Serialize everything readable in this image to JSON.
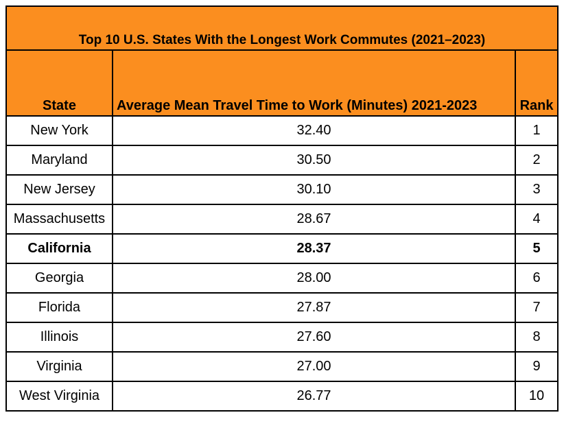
{
  "chart_data": {
    "type": "table",
    "title": "Top 10 U.S. States With the Longest Work Commutes (2021–2023)",
    "columns": [
      "State",
      "Average Mean Travel Time to Work (Minutes) 2021-2023",
      "Rank"
    ],
    "rows": [
      {
        "state": "New York",
        "value": "32.40",
        "rank": "1",
        "highlight": false
      },
      {
        "state": "Maryland",
        "value": "30.50",
        "rank": "2",
        "highlight": false
      },
      {
        "state": "New Jersey",
        "value": "30.10",
        "rank": "3",
        "highlight": false
      },
      {
        "state": "Massachusetts",
        "value": "28.67",
        "rank": "4",
        "highlight": false
      },
      {
        "state": "California",
        "value": "28.37",
        "rank": "5",
        "highlight": true
      },
      {
        "state": "Georgia",
        "value": "28.00",
        "rank": "6",
        "highlight": false
      },
      {
        "state": "Florida",
        "value": "27.87",
        "rank": "7",
        "highlight": false
      },
      {
        "state": "Illinois",
        "value": "27.60",
        "rank": "8",
        "highlight": false
      },
      {
        "state": "Virginia",
        "value": "27.00",
        "rank": "9",
        "highlight": false
      },
      {
        "state": "West Virginia",
        "value": "26.77",
        "rank": "10",
        "highlight": false
      }
    ],
    "header_color": "#fb8e1f"
  }
}
